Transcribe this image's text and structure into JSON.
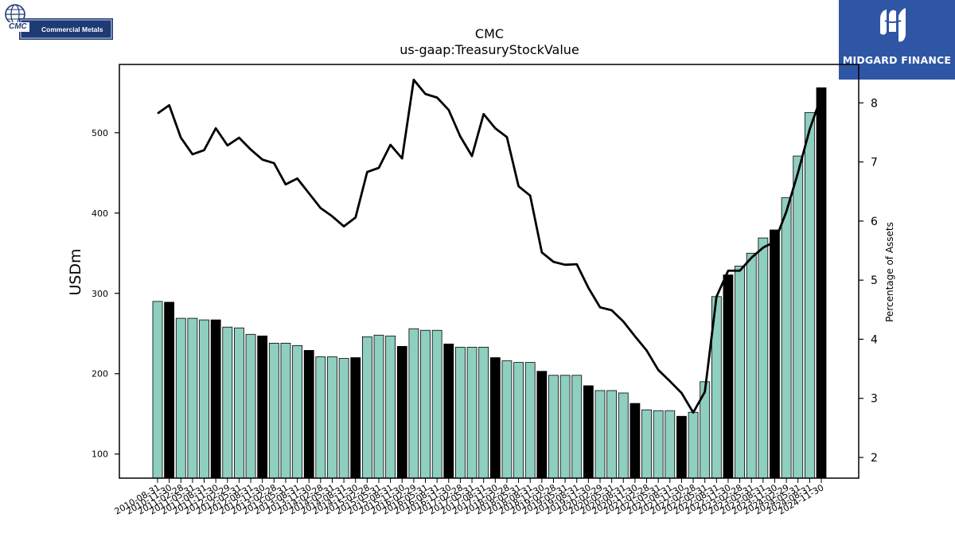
{
  "chart_data": {
    "type": "bar",
    "title": "CMC",
    "subtitle": "us-gaap:TreasuryStockValue",
    "ylabel": "USDm",
    "y2label": "Percentage of Assets",
    "ylim": [
      70,
      585
    ],
    "y2lim": [
      1.65,
      8.65
    ],
    "yticks": [
      100,
      200,
      300,
      400,
      500
    ],
    "y2ticks": [
      2,
      3,
      4,
      5,
      6,
      7,
      8
    ],
    "colors": {
      "bar": "#8ecfbf",
      "bar_highlight": "#000000",
      "line": "#000000"
    },
    "categories": [
      "2010-08-31",
      "2010-11-30",
      "2011-02-28",
      "2011-05-31",
      "2011-08-31",
      "2011-11-30",
      "2012-02-29",
      "2012-05-31",
      "2012-08-31",
      "2012-11-30",
      "2013-02-28",
      "2013-05-31",
      "2013-08-31",
      "2013-11-30",
      "2014-02-28",
      "2014-05-31",
      "2014-08-31",
      "2014-11-30",
      "2015-02-28",
      "2015-05-31",
      "2015-08-31",
      "2015-11-30",
      "2016-02-29",
      "2016-05-31",
      "2016-08-31",
      "2016-11-30",
      "2017-02-28",
      "2017-05-31",
      "2017-08-31",
      "2017-11-30",
      "2018-02-28",
      "2018-05-31",
      "2018-08-31",
      "2018-11-30",
      "2019-02-28",
      "2019-05-31",
      "2019-08-31",
      "2019-11-30",
      "2020-02-29",
      "2020-05-31",
      "2020-08-31",
      "2020-11-30",
      "2021-02-28",
      "2021-05-31",
      "2021-08-31",
      "2021-11-30",
      "2022-02-28",
      "2022-05-31",
      "2022-08-31",
      "2022-11-30",
      "2023-02-28",
      "2023-05-31",
      "2023-08-31",
      "2023-11-30",
      "2024-02-29",
      "2024-05-31",
      "2024-08-31",
      "2024-11-30"
    ],
    "series": [
      {
        "kind": "bar",
        "values": [
          290,
          289,
          269,
          269,
          267,
          267,
          258,
          257,
          249,
          247,
          238,
          238,
          235,
          229,
          221,
          221,
          219,
          220,
          246,
          248,
          247,
          234,
          256,
          254,
          254,
          237,
          233,
          233,
          233,
          220,
          216,
          214,
          214,
          203,
          198,
          198,
          198,
          185,
          179,
          179,
          176,
          163,
          155,
          154,
          154,
          147,
          152,
          190,
          296,
          323,
          334,
          350,
          369,
          379,
          419,
          471,
          525,
          556
        ],
        "highlight": [
          false,
          true,
          false,
          false,
          false,
          true,
          false,
          false,
          false,
          true,
          false,
          false,
          false,
          true,
          false,
          false,
          false,
          true,
          false,
          false,
          false,
          true,
          false,
          false,
          false,
          true,
          false,
          false,
          false,
          true,
          false,
          false,
          false,
          true,
          false,
          false,
          false,
          true,
          false,
          false,
          false,
          true,
          false,
          false,
          false,
          true,
          false,
          false,
          false,
          true,
          false,
          false,
          false,
          true,
          false,
          false,
          false,
          true
        ]
      },
      {
        "kind": "line",
        "axis": "right",
        "values": [
          7.82,
          7.96,
          7.41,
          7.13,
          7.2,
          7.57,
          7.28,
          7.41,
          7.21,
          7.04,
          6.98,
          6.62,
          6.72,
          6.47,
          6.22,
          6.08,
          5.91,
          6.06,
          6.83,
          6.9,
          7.29,
          7.06,
          8.39,
          8.15,
          8.09,
          7.88,
          7.43,
          7.1,
          7.81,
          7.57,
          7.42,
          6.59,
          6.43,
          5.47,
          5.31,
          5.26,
          5.27,
          4.87,
          4.54,
          4.49,
          4.3,
          4.05,
          3.81,
          3.48,
          3.29,
          3.09,
          2.76,
          3.11,
          4.72,
          5.16,
          5.16,
          5.38,
          5.55,
          5.65,
          6.16,
          6.82,
          7.55,
          8.11
        ]
      }
    ]
  },
  "logos": {
    "left_primary": "CMC",
    "left_secondary": "Commercial Metals",
    "right_brand": "MIDGARD FINANCE"
  }
}
